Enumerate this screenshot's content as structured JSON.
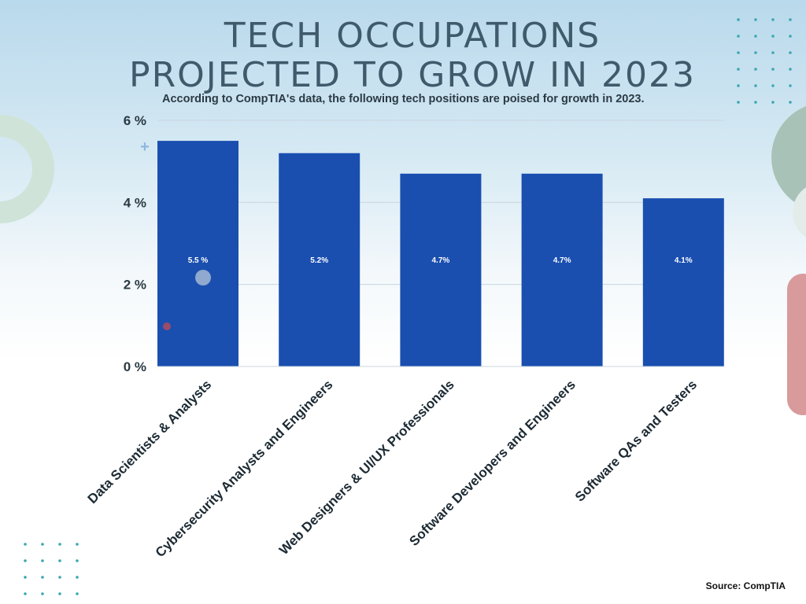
{
  "chart_data": {
    "type": "bar",
    "title": "TECH OCCUPATIONS PROJECTED TO GROW IN 2023",
    "title_lines": [
      "TECH OCCUPATIONS",
      "PROJECTED TO GROW IN 2023"
    ],
    "subtitle": "According to CompTIA's data, the following tech positions are poised for growth in 2023.",
    "categories": [
      "Data Scientists & Analysts",
      "Cybersecurity Analysts and Engineers",
      "Web Designers & UI/UX Professionals",
      "Software Developers and Engineers",
      "Software QAs and Testers"
    ],
    "values": [
      5.5,
      5.2,
      4.7,
      4.7,
      4.1
    ],
    "data_labels": [
      "5.5 %",
      "5.2%",
      "4.7%",
      "4.7%",
      "4.1%"
    ],
    "yticks": [
      0,
      2,
      4,
      6
    ],
    "ytick_labels": [
      "0 %",
      "2 %",
      "4 %",
      "6 %"
    ],
    "ylim": [
      0,
      6
    ],
    "grid": true,
    "bar_color": "#1a4fb0",
    "source": "Source: CompTIA"
  }
}
